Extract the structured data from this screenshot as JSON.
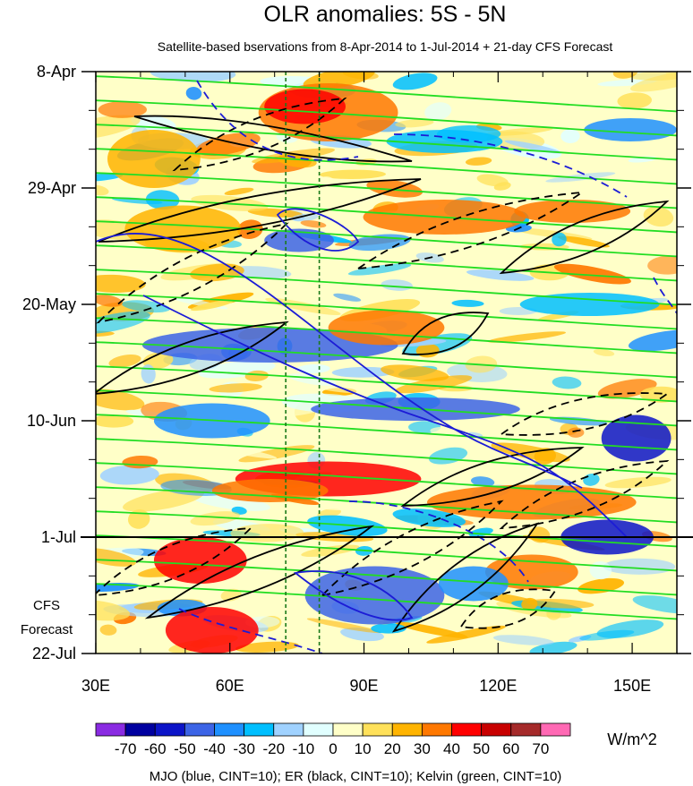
{
  "chart_data": {
    "type": "heatmap",
    "title": "OLR anomalies: 5S - 5N",
    "subtitle": "Satellite-based bservations from 8-Apr-2014 to 1-Jul-2014 + 21-day CFS Forecast",
    "xlabel": "",
    "ylabel": "",
    "x_ticks": [
      "30E",
      "60E",
      "90E",
      "120E",
      "150E"
    ],
    "x_tick_values": [
      30,
      60,
      90,
      120,
      150
    ],
    "xlim": [
      30,
      160
    ],
    "y_ticks": [
      "8-Apr",
      "29-Apr",
      "20-May",
      "10-Jun",
      "1-Jul",
      "22-Jul"
    ],
    "y_tick_values": [
      "2014-04-08",
      "2014-04-29",
      "2014-05-20",
      "2014-06-10",
      "2014-07-01",
      "2014-07-22"
    ],
    "ylim": [
      "2014-04-08",
      "2014-07-22"
    ],
    "forecast_start": "2014-07-01",
    "forecast_label": [
      "CFS",
      "Forecast"
    ],
    "reference_longitudes": [
      72.5,
      80
    ],
    "colorbar": {
      "labels": [
        "-70",
        "-60",
        "-50",
        "-40",
        "-30",
        "-20",
        "-10",
        "0",
        "10",
        "20",
        "30",
        "40",
        "50",
        "60",
        "70"
      ],
      "colors": [
        "#8a2be2",
        "#0000a0",
        "#0c14c8",
        "#3c64e6",
        "#1e90ff",
        "#00bfff",
        "#a0d2ff",
        "#e1ffff",
        "#ffffc8",
        "#ffe15a",
        "#ffb400",
        "#ff7800",
        "#ff0000",
        "#c80000",
        "#a52a2a",
        "#ff69b4"
      ],
      "units": "W/m^2"
    },
    "footnote": "MJO (blue, CINT=10); ER (black, CINT=10); Kelvin (green, CINT=10)",
    "contour_series": [
      {
        "name": "MJO",
        "color": "#1c1cd6"
      },
      {
        "name": "ER",
        "color": "#000000"
      },
      {
        "name": "Kelvin",
        "color": "#22dd22"
      }
    ],
    "grid": false
  }
}
